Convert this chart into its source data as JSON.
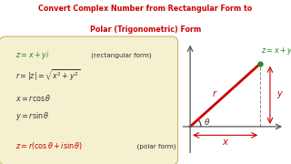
{
  "title_line1": "Convert Complex Number from Rectangular Form to",
  "title_line2": "Polar (Trigonometric) Form",
  "title_color": "#cc0000",
  "bg_color": "#ffffff",
  "box_bg": "#f5f0d0",
  "box_edge": "#c8b870",
  "formulas": [
    {
      "latex": "$z = x + yi$",
      "color": "#228B22",
      "suffix": " (rectangular form)"
    },
    {
      "latex": "$r = |z| = \\sqrt{x^2 + y^2}$",
      "color": "#333333",
      "suffix": ""
    },
    {
      "latex": "$x = r\\cos\\theta$",
      "color": "#333333",
      "suffix": ""
    },
    {
      "latex": "$y = r\\sin\\theta$",
      "color": "#333333",
      "suffix": ""
    },
    {
      "latex": "$z = r(\\cos\\theta + i\\sin\\theta)$",
      "color": "#cc0000",
      "suffix": "  (polar form)"
    }
  ],
  "diagram": {
    "z_label": "$z = x + yi$",
    "z_color": "#228B22",
    "r_label": "$r$",
    "r_color": "#cc0000",
    "y_label": "$y$",
    "y_color": "#cc0000",
    "x_label": "$x$",
    "x_color": "#cc0000",
    "theta_label": "$\\theta$",
    "theta_color": "#333333",
    "axis_color": "#555555",
    "line_color": "#cc0000",
    "point_color": "#228B22"
  }
}
